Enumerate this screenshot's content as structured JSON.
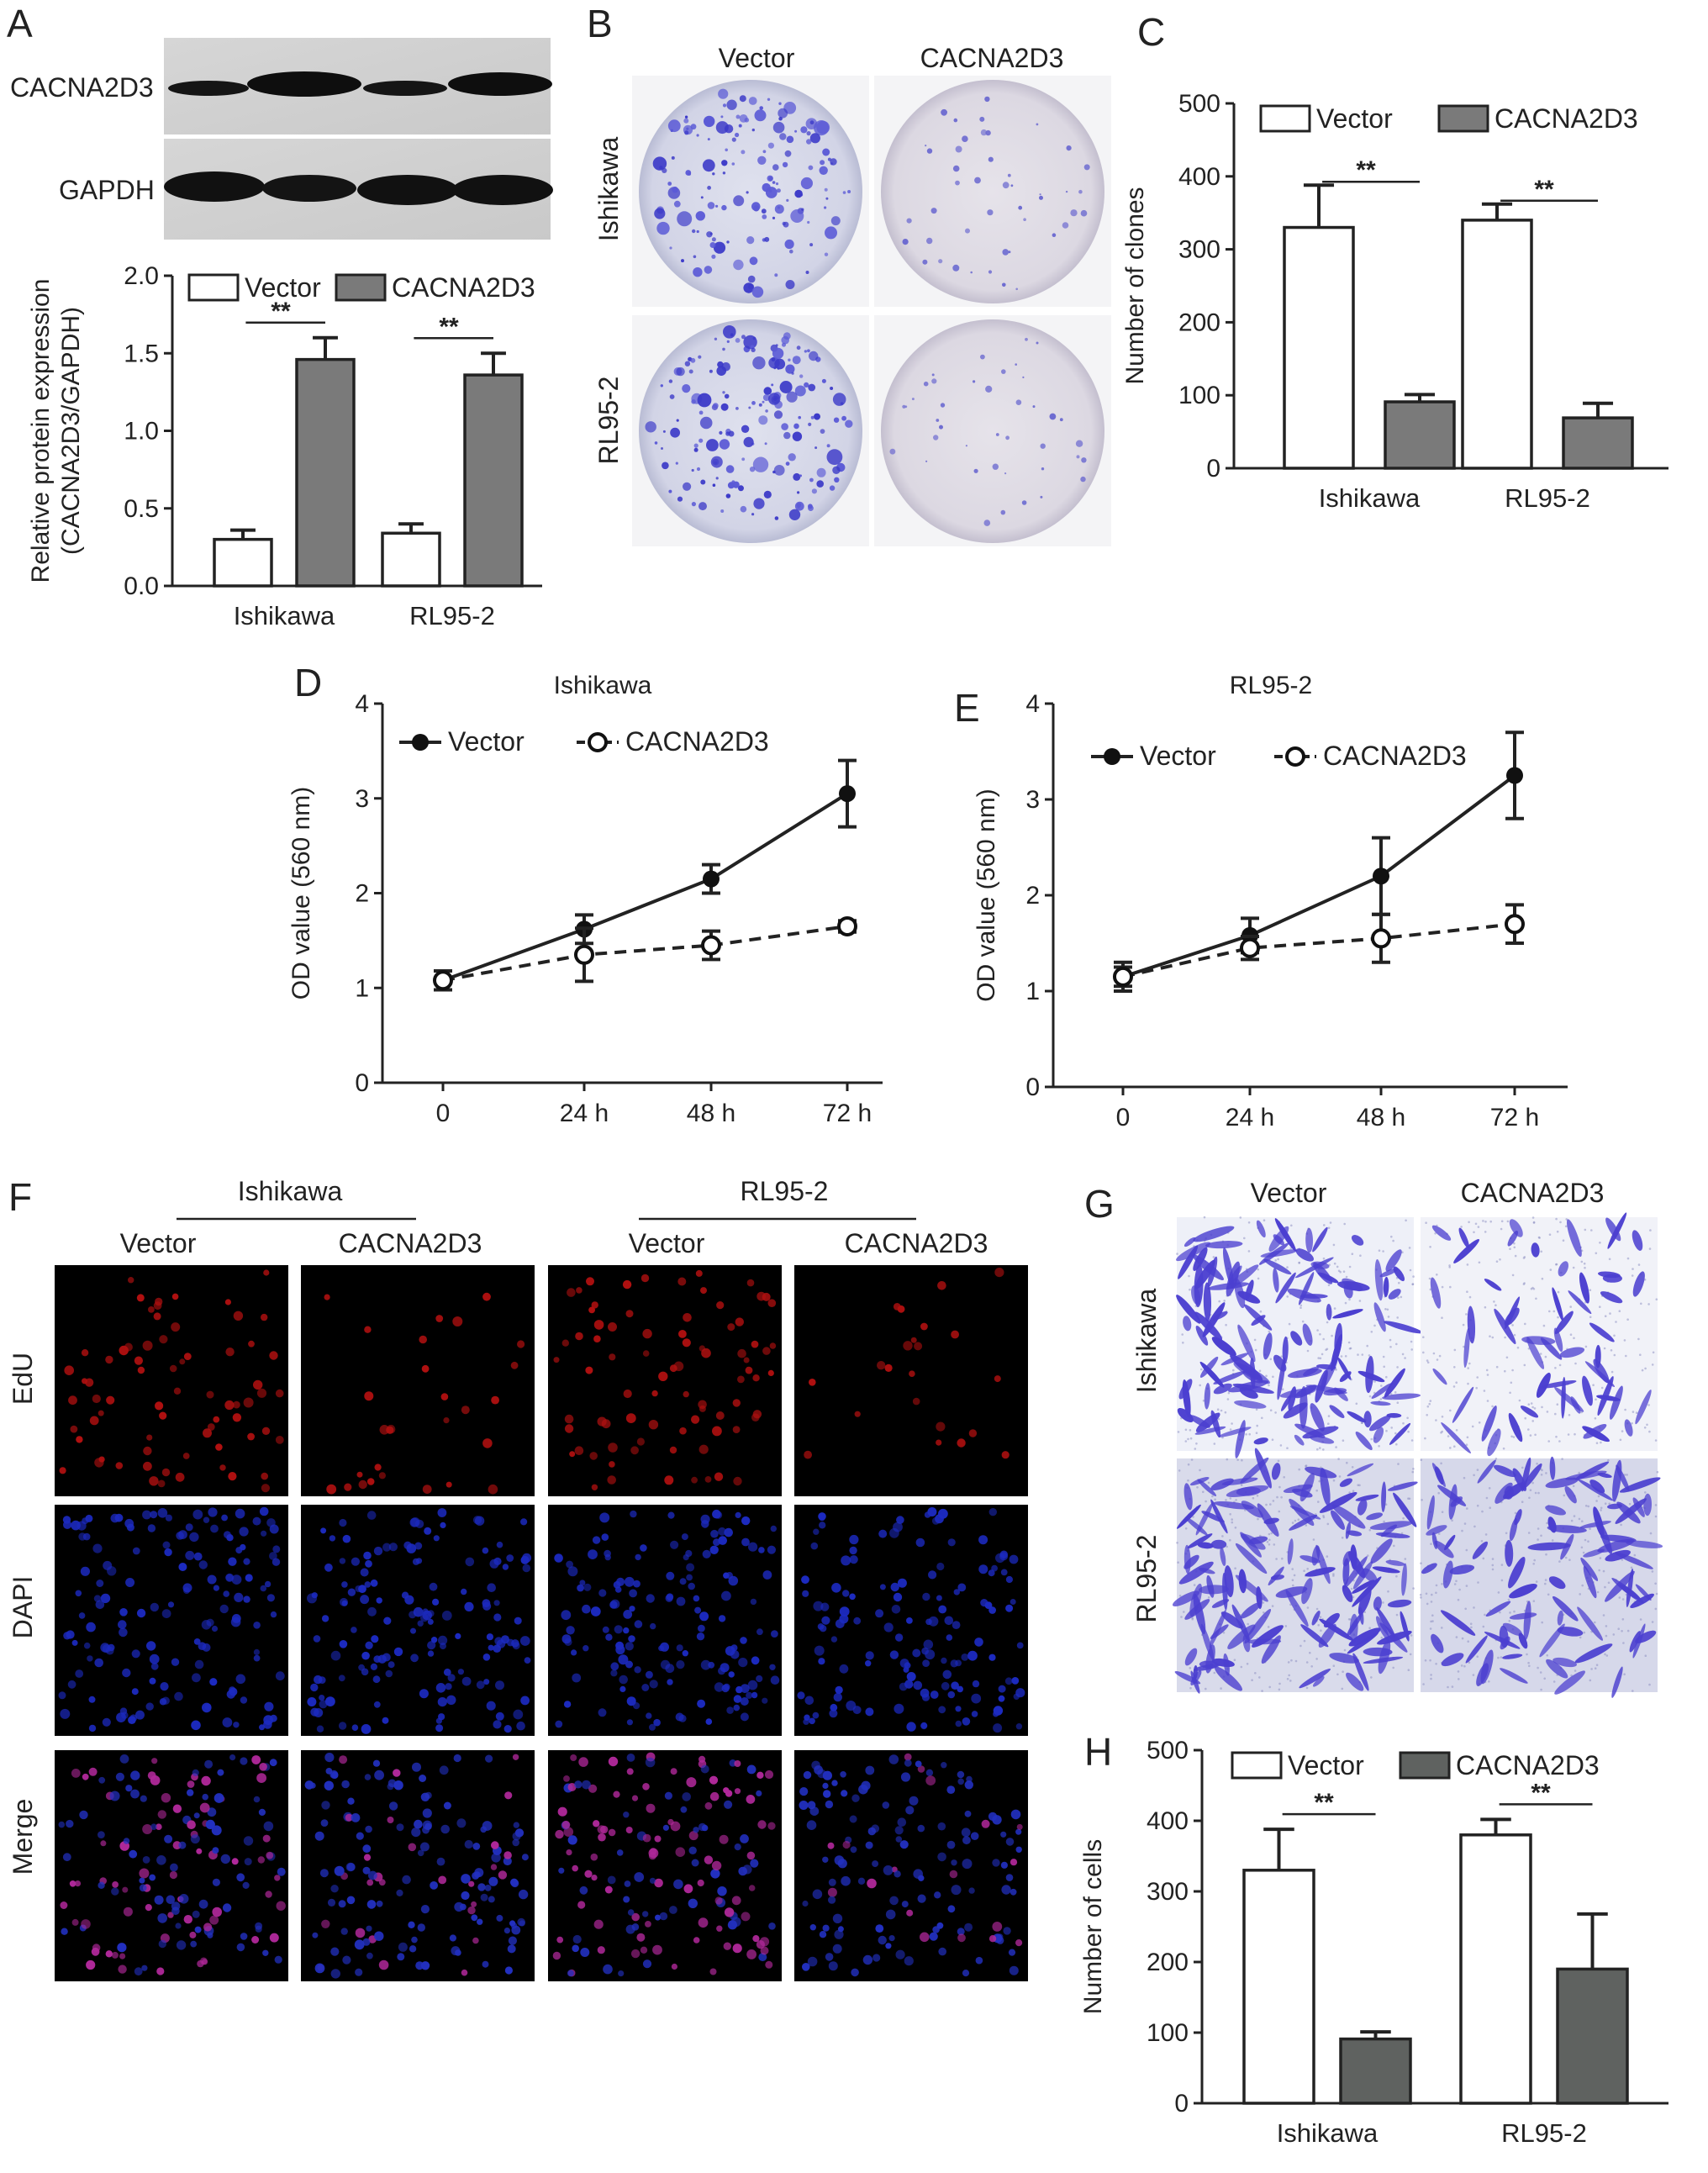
{
  "panel_labels": {
    "A": "A",
    "B": "B",
    "C": "C",
    "D": "D",
    "E": "E",
    "F": "F",
    "G": "G",
    "H": "H"
  },
  "colors": {
    "vector": "#ffffff",
    "cacna_bar": "#7a7a7a",
    "cacna_bar_dark": "#5f6260",
    "axis": "#222222"
  },
  "blot": {
    "row1": "CACNA2D3",
    "row2": "GAPDH"
  },
  "colony": {
    "cols": [
      "Vector",
      "CACNA2D3"
    ],
    "rows": [
      "Ishikawa",
      "RL95-2"
    ]
  },
  "edu": {
    "groups": [
      "Ishikawa",
      "RL95-2"
    ],
    "cols": [
      "Vector",
      "CACNA2D3",
      "Vector",
      "CACNA2D3"
    ],
    "rows": [
      "EdU",
      "DAPI",
      "Merge"
    ]
  },
  "transwell": {
    "cols": [
      "Vector",
      "CACNA2D3"
    ],
    "rows": [
      "Ishikawa",
      "RL95-2"
    ]
  },
  "chart_data": [
    {
      "panel": "A",
      "type": "bar",
      "categories": [
        "Ishikawa",
        "RL95-2"
      ],
      "series": [
        {
          "name": "Vector",
          "values": [
            0.3,
            0.34
          ],
          "errors": [
            0.06,
            0.06
          ]
        },
        {
          "name": "CACNA2D3",
          "values": [
            1.46,
            1.36
          ],
          "errors": [
            0.14,
            0.14
          ]
        }
      ],
      "ylabel": "Relative protein expression",
      "ylabel2": "(CACNA2D3/GAPDH)",
      "ylim": [
        0,
        2.0
      ],
      "yticks": [
        "0.0",
        "0.5",
        "1.0",
        "1.5",
        "2.0"
      ],
      "significance": [
        "**",
        "**"
      ]
    },
    {
      "panel": "C",
      "type": "bar",
      "categories": [
        "Ishikawa",
        "RL95-2"
      ],
      "series": [
        {
          "name": "Vector",
          "values": [
            330,
            340
          ],
          "errors": [
            58,
            22
          ]
        },
        {
          "name": "CACNA2D3",
          "values": [
            91,
            69
          ],
          "errors": [
            10,
            20
          ]
        }
      ],
      "ylabel": "Number of clones",
      "ylim": [
        0,
        500
      ],
      "yticks": [
        "0",
        "100",
        "200",
        "300",
        "400",
        "500"
      ],
      "significance": [
        "**",
        "**"
      ]
    },
    {
      "panel": "D",
      "type": "line",
      "title": "Ishikawa",
      "x": [
        "0",
        "24 h",
        "48 h",
        "72 h"
      ],
      "series": [
        {
          "name": "Vector",
          "values": [
            1.08,
            1.62,
            2.15,
            3.05
          ],
          "errors": [
            0.1,
            0.15,
            0.15,
            0.35
          ]
        },
        {
          "name": "CACNA2D3",
          "values": [
            1.08,
            1.35,
            1.45,
            1.65
          ],
          "errors": [
            0.1,
            0.28,
            0.15,
            0.06
          ]
        }
      ],
      "ylabel": "OD value (560 nm)",
      "ylim": [
        0,
        4
      ],
      "yticks": [
        "0",
        "1",
        "2",
        "3",
        "4"
      ]
    },
    {
      "panel": "E",
      "type": "line",
      "title": "RL95-2",
      "x": [
        "0",
        "24 h",
        "48 h",
        "72 h"
      ],
      "series": [
        {
          "name": "Vector",
          "values": [
            1.15,
            1.58,
            2.2,
            3.25
          ],
          "errors": [
            0.15,
            0.18,
            0.4,
            0.45
          ]
        },
        {
          "name": "CACNA2D3",
          "values": [
            1.15,
            1.45,
            1.55,
            1.7
          ],
          "errors": [
            0.1,
            0.12,
            0.25,
            0.2
          ]
        }
      ],
      "ylabel": "OD value (560 nm)",
      "ylim": [
        0,
        4
      ],
      "yticks": [
        "0",
        "1",
        "2",
        "3",
        "4"
      ]
    },
    {
      "panel": "H",
      "type": "bar",
      "categories": [
        "Ishikawa",
        "RL95-2"
      ],
      "series": [
        {
          "name": "Vector",
          "values": [
            330,
            380
          ],
          "errors": [
            58,
            22
          ]
        },
        {
          "name": "CACNA2D3",
          "values": [
            91,
            190
          ],
          "errors": [
            10,
            78
          ]
        }
      ],
      "ylabel": "Number of cells",
      "ylim": [
        0,
        500
      ],
      "yticks": [
        "0",
        "100",
        "200",
        "300",
        "400",
        "500"
      ],
      "significance": [
        "**",
        "**"
      ]
    }
  ]
}
